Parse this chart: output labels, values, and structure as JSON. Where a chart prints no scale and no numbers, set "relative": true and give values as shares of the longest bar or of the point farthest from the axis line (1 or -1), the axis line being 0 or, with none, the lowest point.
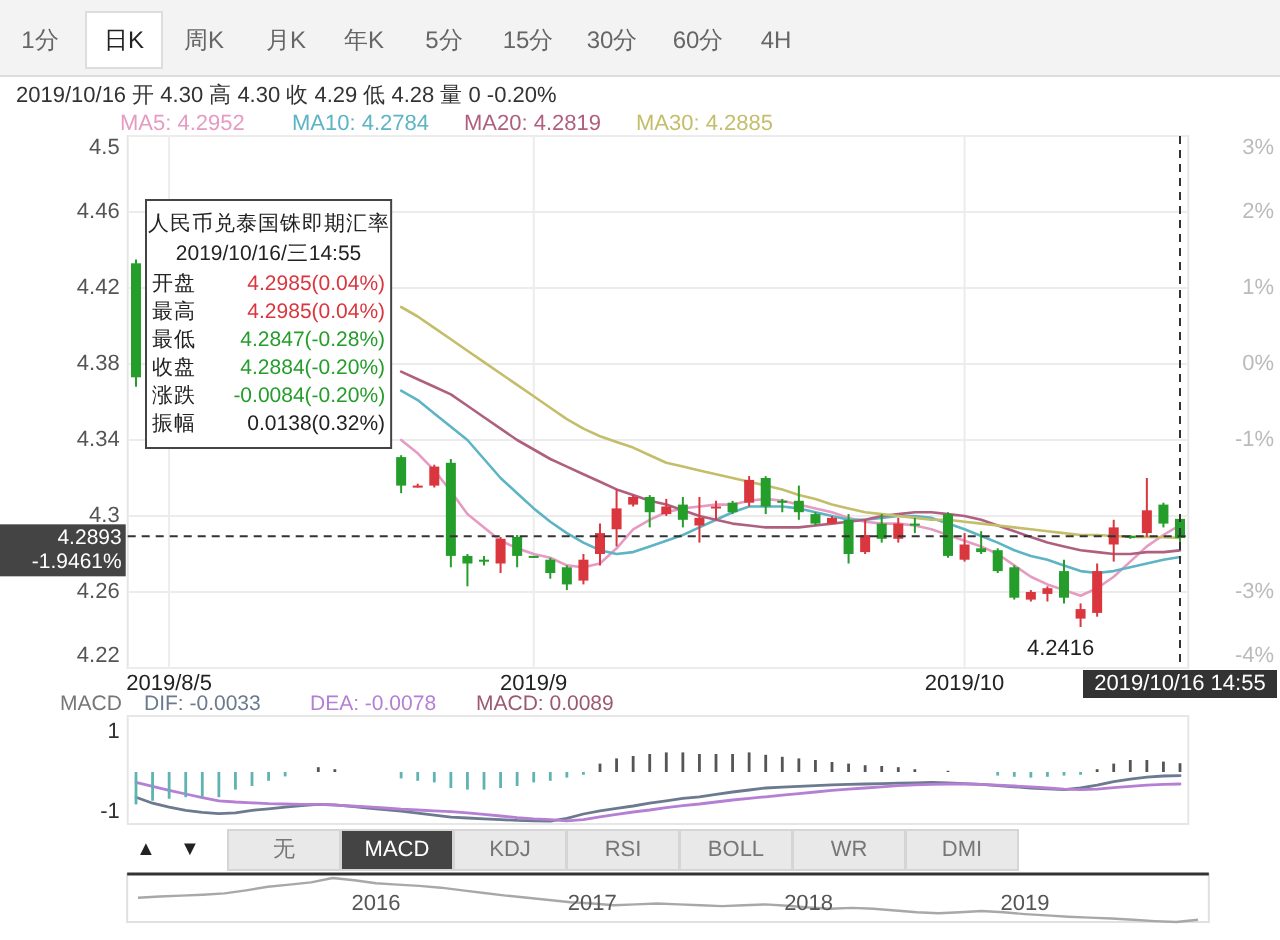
{
  "chart_data": [
    {
      "type": "other",
      "annotations": [
        "1分",
        "日K",
        "周K",
        "月K",
        "年K",
        "5分",
        "15分",
        "30分",
        "60分",
        "4H",
        "▲",
        "▼",
        "无",
        "MACD",
        "KDJ",
        "RSI",
        "BOLL",
        "WR",
        "DMI"
      ]
    },
    {
      "type": "candlestick",
      "subtitle": "2019/10/16 开 4.30 高 4.30 收 4.29 低 4.28 量 0 -0.20%",
      "categories": [
        null,
        null,
        "2019/8/5",
        null,
        null,
        null,
        null,
        null,
        null,
        null,
        null,
        null,
        null,
        null,
        null,
        null,
        null,
        null,
        null,
        null,
        null,
        null,
        null,
        null,
        "2019/9",
        null,
        null,
        null,
        null,
        null,
        null,
        null,
        null,
        null,
        null,
        null,
        null,
        null,
        null,
        null,
        null,
        null,
        null,
        null,
        null,
        null,
        null,
        null,
        null,
        null,
        "2019/10",
        null,
        null,
        null,
        null,
        null,
        null,
        null,
        null,
        null,
        null,
        null,
        null,
        "2019/10/16 14:55"
      ],
      "ohlc": [
        [
          4.433,
          4.435,
          4.368,
          4.373
        ],
        null,
        null,
        null,
        null,
        null,
        null,
        null,
        null,
        null,
        null,
        null,
        null,
        null,
        null,
        null,
        [
          4.331,
          4.332,
          4.312,
          4.316
        ],
        [
          4.316,
          4.317,
          4.315,
          4.316
        ],
        [
          4.316,
          4.327,
          4.315,
          4.326
        ],
        [
          4.328,
          4.33,
          4.273,
          4.279
        ],
        [
          4.279,
          4.28,
          4.263,
          4.275
        ],
        [
          4.277,
          4.279,
          4.274,
          4.276
        ],
        [
          4.275,
          4.289,
          4.27,
          4.288
        ],
        [
          4.289,
          4.29,
          4.273,
          4.279
        ],
        [
          4.279,
          4.279,
          4.278,
          4.278
        ],
        [
          4.277,
          4.278,
          4.267,
          4.27
        ],
        [
          4.273,
          4.274,
          4.261,
          4.264
        ],
        [
          4.266,
          4.28,
          4.264,
          4.277
        ],
        [
          4.28,
          4.296,
          4.274,
          4.291
        ],
        [
          4.293,
          4.314,
          4.284,
          4.304
        ],
        [
          4.306,
          4.311,
          4.305,
          4.31
        ],
        [
          4.31,
          4.311,
          4.294,
          4.302
        ],
        [
          4.301,
          4.309,
          4.3,
          4.305
        ],
        [
          4.306,
          4.31,
          4.294,
          4.298
        ],
        [
          4.295,
          4.31,
          4.286,
          4.299
        ],
        [
          4.304,
          4.308,
          4.298,
          4.305
        ],
        [
          4.307,
          4.308,
          4.301,
          4.302
        ],
        [
          4.307,
          4.321,
          4.305,
          4.319
        ],
        [
          4.32,
          4.321,
          4.301,
          4.305
        ],
        [
          4.308,
          4.309,
          4.302,
          4.307
        ],
        [
          4.308,
          4.316,
          4.298,
          4.302
        ],
        [
          4.301,
          4.302,
          4.295,
          4.296
        ],
        [
          4.296,
          4.3,
          4.296,
          4.299
        ],
        [
          4.298,
          4.301,
          4.275,
          4.28
        ],
        [
          4.281,
          4.298,
          4.28,
          4.29
        ],
        [
          4.296,
          4.301,
          4.286,
          4.288
        ],
        [
          4.288,
          4.299,
          4.286,
          4.296
        ],
        [
          4.296,
          4.299,
          4.291,
          4.295
        ],
        null,
        [
          4.301,
          4.302,
          4.278,
          4.279
        ],
        [
          4.277,
          4.291,
          4.276,
          4.285
        ],
        [
          4.283,
          4.292,
          4.28,
          4.281
        ],
        [
          4.282,
          4.283,
          4.27,
          4.271
        ],
        [
          4.273,
          4.274,
          4.256,
          4.257
        ],
        [
          4.256,
          4.261,
          4.255,
          4.26
        ],
        [
          4.259,
          4.263,
          4.255,
          4.262
        ],
        [
          4.271,
          4.277,
          4.254,
          4.257
        ],
        [
          4.246,
          4.254,
          4.2416,
          4.251
        ],
        [
          4.249,
          4.275,
          4.247,
          4.271
        ],
        [
          4.285,
          4.298,
          4.276,
          4.294
        ],
        [
          4.2895,
          4.29,
          4.288,
          4.289
        ],
        [
          4.291,
          4.32,
          4.289,
          4.303
        ],
        [
          4.306,
          4.307,
          4.294,
          4.296
        ],
        [
          4.2985,
          4.2985,
          4.2847,
          4.2884
        ]
      ],
      "series": [
        {
          "name": "MA5: 4.2952",
          "color": "#e69bc2",
          "type": "line",
          "values": [
            null,
            null,
            null,
            null,
            null,
            null,
            null,
            null,
            null,
            null,
            null,
            null,
            null,
            null,
            null,
            null,
            4.34,
            4.333,
            4.324,
            4.313,
            4.301,
            4.294,
            4.287,
            4.283,
            4.28,
            4.278,
            4.274,
            4.273,
            4.275,
            4.283,
            4.293,
            4.298,
            4.302,
            4.304,
            4.305,
            4.306,
            4.306,
            4.308,
            4.309,
            4.308,
            4.306,
            4.304,
            4.302,
            4.299,
            4.297,
            4.296,
            4.296,
            4.295,
            4.293,
            4.29,
            4.287,
            4.284,
            4.28,
            4.274,
            4.268,
            4.264,
            4.261,
            4.258,
            4.262,
            4.268,
            4.276,
            4.284,
            4.29,
            4.2952
          ]
        },
        {
          "name": "MA10: 4.2784",
          "color": "#5db4c4",
          "type": "line",
          "values": [
            null,
            null,
            null,
            null,
            null,
            null,
            null,
            null,
            null,
            null,
            null,
            null,
            null,
            null,
            null,
            null,
            4.366,
            4.361,
            4.354,
            4.347,
            4.34,
            4.33,
            4.32,
            4.312,
            4.304,
            4.297,
            4.291,
            4.286,
            4.282,
            4.28,
            4.281,
            4.284,
            4.287,
            4.29,
            4.294,
            4.298,
            4.302,
            4.305,
            4.305,
            4.305,
            4.304,
            4.302,
            4.3,
            4.298,
            4.298,
            4.299,
            4.3,
            4.3,
            4.299,
            4.296,
            4.293,
            4.2895,
            4.286,
            4.282,
            4.279,
            4.277,
            4.274,
            4.271,
            4.27,
            4.271,
            4.273,
            4.275,
            4.277,
            4.2784
          ]
        },
        {
          "name": "MA20: 4.2819",
          "color": "#b0607f",
          "type": "line",
          "values": [
            null,
            null,
            null,
            null,
            null,
            null,
            null,
            null,
            null,
            null,
            null,
            null,
            null,
            null,
            null,
            null,
            4.376,
            4.372,
            4.368,
            4.364,
            4.358,
            4.352,
            4.346,
            4.34,
            4.335,
            4.33,
            4.326,
            4.322,
            4.318,
            4.314,
            4.311,
            4.308,
            4.306,
            4.303,
            4.3,
            4.298,
            4.296,
            4.295,
            4.294,
            4.294,
            4.294,
            4.295,
            4.296,
            4.297,
            4.298,
            4.3,
            4.301,
            4.302,
            4.302,
            4.301,
            4.3,
            4.298,
            4.295,
            4.292,
            4.289,
            4.286,
            4.284,
            4.282,
            4.281,
            4.28,
            4.28,
            4.281,
            4.281,
            4.2819
          ]
        },
        {
          "name": "MA30: 4.2885",
          "color": "#c4bd6a",
          "type": "line",
          "values": [
            null,
            null,
            null,
            null,
            null,
            null,
            null,
            null,
            null,
            null,
            null,
            null,
            null,
            null,
            null,
            null,
            4.41,
            4.405,
            4.399,
            4.393,
            4.387,
            4.381,
            4.375,
            4.369,
            4.363,
            4.357,
            4.351,
            4.346,
            4.342,
            4.339,
            4.336,
            4.332,
            4.328,
            4.326,
            4.324,
            4.322,
            4.32,
            4.318,
            4.316,
            4.314,
            4.311,
            4.309,
            4.306,
            4.304,
            4.302,
            4.301,
            4.3,
            4.299,
            4.298,
            4.298,
            4.297,
            4.296,
            4.295,
            4.294,
            4.293,
            4.292,
            4.291,
            4.29,
            4.29,
            4.2895,
            4.289,
            4.289,
            4.2888,
            4.2885
          ]
        }
      ],
      "ylim": [
        4.22,
        4.5
      ],
      "yticks": [
        4.22,
        4.26,
        {
          "value": 4.3,
          "label": "4.3"
        },
        4.34,
        4.38,
        4.42,
        4.46,
        {
          "value": 4.5,
          "label": "4.5"
        }
      ],
      "y2lim": [
        -4,
        3
      ],
      "y2ticks": [
        {
          "value": -4,
          "label": "-4%"
        },
        {
          "value": -3,
          "label": "-3%"
        },
        {
          "value": -1,
          "label": "-1%"
        },
        {
          "value": 0,
          "label": "0%"
        },
        {
          "value": 1,
          "label": "1%"
        },
        {
          "value": 2,
          "label": "2%"
        },
        {
          "value": 3,
          "label": "3%"
        }
      ],
      "grid": true,
      "ref_lines": [
        {
          "axis": "y",
          "value": 4.2893,
          "label": "4.2893",
          "line_style": "dashed",
          "color": "#333333"
        },
        {
          "axis": "x",
          "value": "2019/10/16 14:55",
          "label": null,
          "line_style": "dashed",
          "color": "#333333"
        }
      ],
      "annotations": [
        "4.2416",
        "-1.9461%",
        "人民币兑泰国铢即期汇率",
        "2019/10/16/三14:55",
        "开盘",
        "4.2985(0.04%)",
        "最高",
        "4.2985(0.04%)",
        "最低",
        "4.2847(-0.28%)",
        "收盘",
        "4.2884(-0.20%)",
        "涨跌",
        "-0.0084(-0.20%)",
        "振幅",
        "0.0138(0.32%)"
      ]
    },
    {
      "type": "bar",
      "title": "MACD",
      "categories": [
        null,
        null,
        null,
        null,
        null,
        null,
        null,
        null,
        null,
        null,
        null,
        null,
        null,
        null,
        null,
        null,
        null,
        null,
        null,
        null,
        null,
        null,
        null,
        null,
        null,
        null,
        null,
        null,
        null,
        null,
        null,
        null,
        null,
        null,
        null,
        null,
        null,
        null,
        null,
        null,
        null,
        null,
        null,
        null,
        null,
        null,
        null,
        null,
        null,
        null,
        null,
        null,
        null,
        null,
        null,
        null,
        null,
        null,
        null,
        null,
        null,
        null,
        null,
        null
      ],
      "series": [
        {
          "name": "DIF: -0.0033",
          "color": "#6b7a8f",
          "type": "line",
          "values": [
            -0.63,
            -0.78,
            -0.88,
            -0.96,
            -1.01,
            -1.04,
            -1.02,
            -0.96,
            -0.92,
            -0.88,
            -0.84,
            -0.81,
            -0.82,
            -0.86,
            -0.9,
            -0.94,
            -0.98,
            -1.03,
            -1.08,
            -1.13,
            -1.15,
            -1.17,
            -1.19,
            -1.21,
            -1.22,
            -1.23,
            -1.16,
            -1.05,
            -0.97,
            -0.91,
            -0.85,
            -0.78,
            -0.72,
            -0.66,
            -0.62,
            -0.56,
            -0.5,
            -0.45,
            -0.4,
            -0.38,
            -0.36,
            -0.34,
            -0.32,
            -0.31,
            -0.3,
            -0.29,
            -0.28,
            -0.27,
            -0.26,
            -0.27,
            -0.29,
            -0.31,
            -0.34,
            -0.37,
            -0.4,
            -0.42,
            -0.44,
            -0.4,
            -0.33,
            -0.24,
            -0.18,
            -0.13,
            -0.1,
            -0.09
          ]
        },
        {
          "name": "DEA: -0.0078",
          "color": "#b57fd3",
          "type": "line",
          "values": [
            -0.26,
            -0.36,
            -0.46,
            -0.55,
            -0.64,
            -0.72,
            -0.75,
            -0.77,
            -0.79,
            -0.8,
            -0.81,
            -0.81,
            -0.83,
            -0.85,
            -0.87,
            -0.9,
            -0.93,
            -0.95,
            -0.97,
            -0.99,
            -1.02,
            -1.06,
            -1.1,
            -1.14,
            -1.17,
            -1.19,
            -1.22,
            -1.19,
            -1.12,
            -1.06,
            -1.0,
            -0.95,
            -0.89,
            -0.84,
            -0.8,
            -0.75,
            -0.7,
            -0.66,
            -0.62,
            -0.58,
            -0.54,
            -0.5,
            -0.46,
            -0.43,
            -0.4,
            -0.37,
            -0.34,
            -0.32,
            -0.31,
            -0.3,
            -0.3,
            -0.31,
            -0.33,
            -0.35,
            -0.37,
            -0.4,
            -0.43,
            -0.44,
            -0.43,
            -0.39,
            -0.36,
            -0.33,
            -0.31,
            -0.3
          ]
        },
        {
          "name": "MACD: 0.0089",
          "color": "#9b5a72",
          "type": "bar",
          "values": [
            -0.81,
            -0.72,
            -0.67,
            -0.63,
            -0.63,
            -0.63,
            -0.44,
            -0.35,
            -0.22,
            -0.11,
            0,
            0.12,
            0.07,
            null,
            0,
            0,
            -0.16,
            -0.22,
            -0.26,
            -0.4,
            -0.44,
            -0.44,
            -0.4,
            -0.35,
            -0.26,
            -0.22,
            -0.14,
            -0.07,
            0.21,
            0.34,
            0.4,
            0.45,
            0.49,
            0.49,
            0.45,
            0.45,
            0.45,
            0.49,
            0.43,
            0.38,
            0.34,
            0.3,
            0.25,
            0.21,
            0.17,
            0.15,
            0.12,
            0.07,
            null,
            0.03,
            0,
            0,
            -0.09,
            -0.12,
            -0.14,
            -0.12,
            -0.09,
            -0.07,
            0.07,
            0.21,
            0.3,
            0.3,
            0.26,
            0.22
          ],
          "colors": [
            "#5fb3b3",
            "#5fb3b3",
            "#5fb3b3",
            "#5fb3b3",
            "#5fb3b3",
            "#5fb3b3",
            "#5fb3b3",
            "#5fb3b3",
            "#5fb3b3",
            "#5fb3b3",
            "#5fb3b3",
            "#555555",
            "#555555",
            null,
            "#555555",
            "#555555",
            "#5fb3b3",
            "#5fb3b3",
            "#5fb3b3",
            "#5fb3b3",
            "#5fb3b3",
            "#5fb3b3",
            "#5fb3b3",
            "#5fb3b3",
            "#5fb3b3",
            "#5fb3b3",
            "#5fb3b3",
            "#5fb3b3",
            "#555555",
            "#555555",
            "#555555",
            "#555555",
            "#555555",
            "#555555",
            "#555555",
            "#555555",
            "#555555",
            "#555555",
            "#555555",
            "#555555",
            "#555555",
            "#555555",
            "#555555",
            "#555555",
            "#555555",
            "#555555",
            "#555555",
            "#555555",
            null,
            "#555555",
            "#555555",
            "#555555",
            "#5fb3b3",
            "#5fb3b3",
            "#5fb3b3",
            "#5fb3b3",
            "#5fb3b3",
            "#5fb3b3",
            "#555555",
            "#555555",
            "#555555",
            "#555555",
            "#555555",
            "#555555"
          ]
        }
      ],
      "ylim": [
        -1.3,
        1.4
      ],
      "yticks": [
        -1,
        1
      ],
      "tick_labels": "y"
    },
    {
      "type": "line",
      "relative": true,
      "tick_labels": "x",
      "categories": [
        null,
        null,
        null,
        null,
        null,
        null,
        null,
        null,
        null,
        null,
        null,
        "2016",
        null,
        null,
        null,
        null,
        null,
        null,
        null,
        null,
        null,
        "2017",
        null,
        null,
        null,
        null,
        null,
        null,
        null,
        null,
        null,
        "2018",
        null,
        null,
        null,
        null,
        null,
        null,
        null,
        null,
        null,
        "2019",
        null,
        null,
        null,
        null,
        null,
        null,
        null,
        null
      ],
      "series": [
        {
          "color": "#a8a8a8",
          "values": [
            0.55,
            0.58,
            0.6,
            0.62,
            0.65,
            0.72,
            0.8,
            0.85,
            0.9,
            1,
            0.95,
            0.88,
            0.85,
            0.82,
            0.78,
            0.72,
            0.66,
            0.6,
            0.55,
            0.5,
            0.45,
            0.42,
            0.38,
            0.4,
            0.42,
            0.4,
            0.38,
            0.36,
            0.38,
            0.4,
            0.37,
            0.33,
            0.3,
            0.32,
            0.3,
            0.26,
            0.22,
            0.2,
            0.22,
            0.25,
            0.22,
            0.18,
            0.15,
            0.12,
            0.1,
            0.08,
            0.05,
            0.02,
            0,
            0.05
          ]
        }
      ]
    }
  ]
}
